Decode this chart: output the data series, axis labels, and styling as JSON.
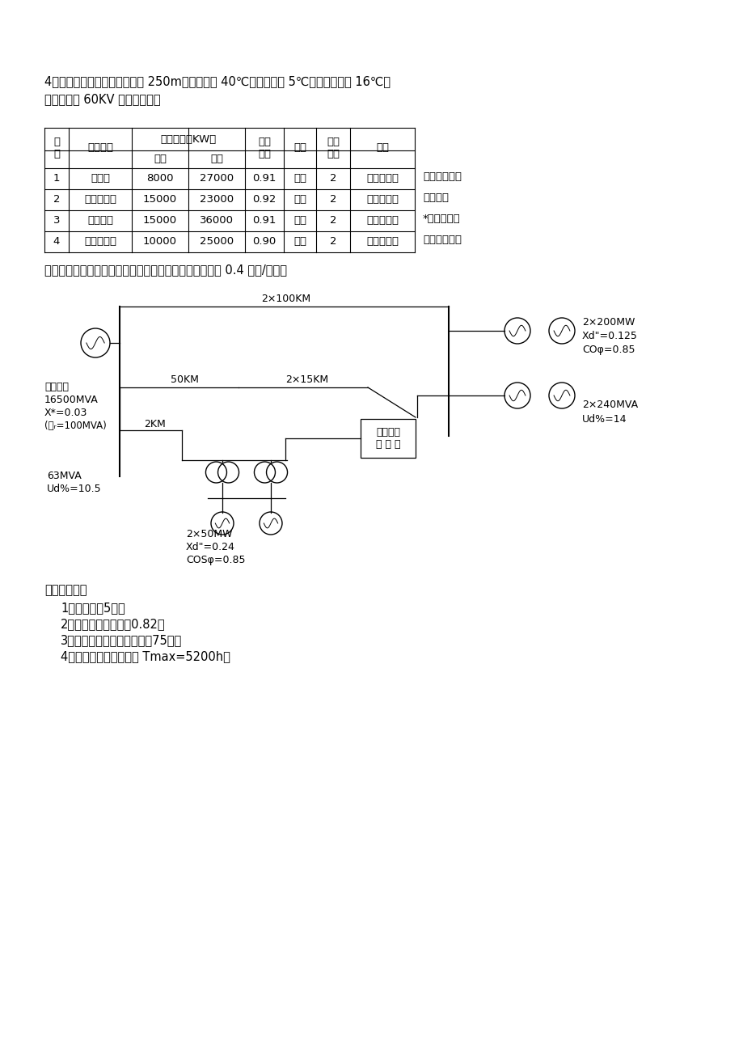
{
  "bg_color": "#ffffff",
  "para1": "4、所处城市中心，海拘高度为 250m，最高气温 40℃，最低气温 5℃，年平均温度 16℃。",
  "para2": "二、变电所 60KV 的用户负荷表",
  "table_rows": [
    [
      "1",
      "轴承厂",
      "8000",
      "27000",
      "0.91",
      "架空",
      "2",
      "有重要负荷"
    ],
    [
      "2",
      "风动工具厂",
      "15000",
      "23000",
      "0.92",
      "架空",
      "2",
      "有重要负荷"
    ],
    [
      "3",
      "发动机厂",
      "15000",
      "36000",
      "0.91",
      "架空",
      "2",
      "有重要负荷"
    ],
    [
      "4",
      "汽车配件厂",
      "10000",
      "25000",
      "0.90",
      "架空",
      "2",
      "有重要负荷"
    ]
  ],
  "side_texts": [
    "三、电力系统",
    "接线方式",
    "*系统中所有",
    "的发电机均为"
  ],
  "para3": "汽轮发电机，送电线路均为架空线，单位长度正序电抗为 0.4 欧姆/公里。",
  "sec4_title": "四、其他条件",
  "sec4_items": [
    "1、线损率厖5％。",
    "2、负荷的同时系数厖0.82。",
    "3、所带重要负荷占总负荷的75％。",
    "4、最大负荷利用小时数 Tmax=5200h。"
  ],
  "diag_labels": {
    "top_line": "2×100KM",
    "mid_line1": "50KM",
    "mid_line2": "2×15KM",
    "short_line": "2KM",
    "left_sys1": "电力系统",
    "left_sys2": "16500MVA",
    "left_sys3": "X*=0.03",
    "left_sys4": "(Ｓᵣ=100MVA)",
    "tr_label1": "63MVA",
    "tr_label2": "Ud%=10.5",
    "gen_bot1": "2×50MW",
    "gen_bot2": "Xd\"=0.24",
    "gen_bot3": "COSφ=0.85",
    "right_top1": "2×200MW",
    "right_top2": "Xd\"=0.125",
    "right_top3": "COφ=0.85",
    "right_bot1": "2×240MVA",
    "right_bot2": "Ud%=14",
    "substation": "待设计的\n变 电 所"
  }
}
